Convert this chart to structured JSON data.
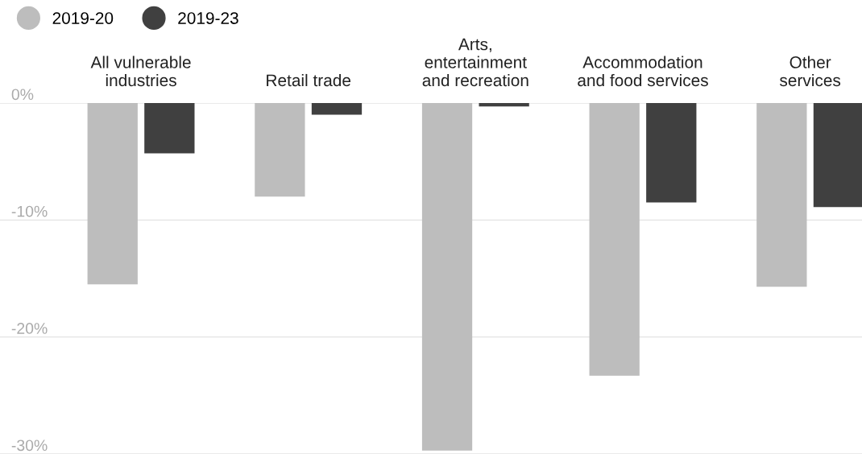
{
  "chart_data": {
    "type": "bar",
    "categories": [
      "All vulnerable\nindustries",
      "Retail trade",
      "Arts,\nentertainment\nand recreation",
      "Accommodation\nand food services",
      "Other\nservices"
    ],
    "series": [
      {
        "name": "2019-20",
        "color": "#bdbdbd",
        "values": [
          -15.5,
          -8.0,
          -29.7,
          -23.3,
          -15.7
        ]
      },
      {
        "name": "2019-23",
        "color": "#404040",
        "values": [
          -4.3,
          -1.0,
          -0.3,
          -8.5,
          -8.9
        ]
      }
    ],
    "ylim": [
      -30,
      0
    ],
    "yticks": [
      {
        "value": 0,
        "label": "0%"
      },
      {
        "value": -10,
        "label": "-10%"
      },
      {
        "value": -20,
        "label": "-20%"
      },
      {
        "value": -30,
        "label": "-30%"
      }
    ],
    "grid": "y",
    "legend": "top left"
  }
}
